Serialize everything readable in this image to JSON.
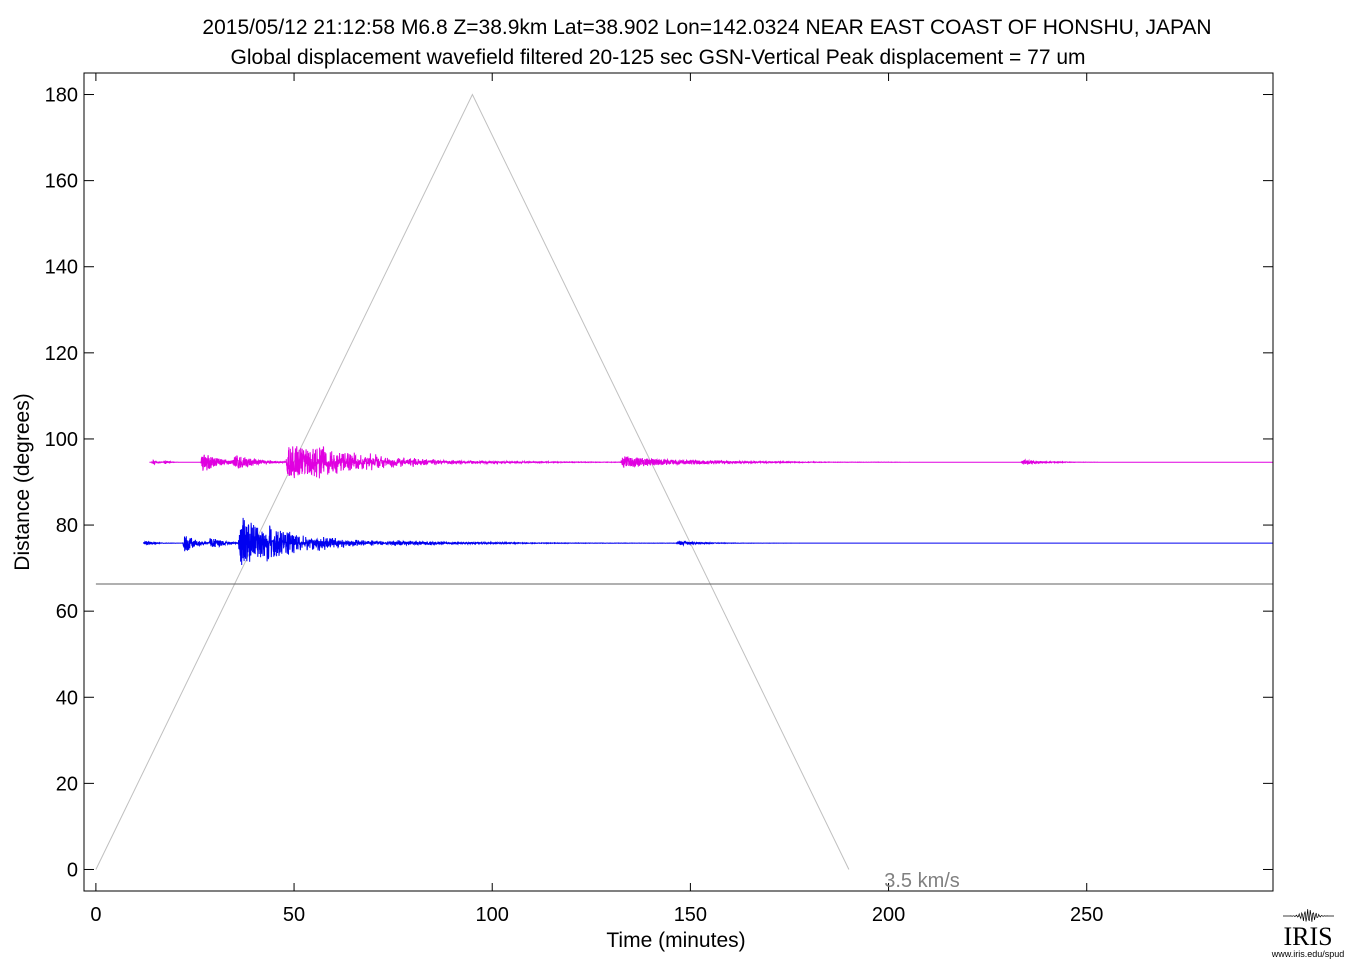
{
  "chart_data": {
    "type": "line",
    "title": "2015/05/12  21:12:58  M6.8  Z=38.9km  Lat=38.902 Lon=142.0324  NEAR EAST COAST OF HONSHU, JAPAN",
    "subtitle": "Global displacement wavefield    filtered 20-125 sec    GSN-Vertical    Peak displacement =  77 um",
    "xlabel": "Time (minutes)",
    "ylabel": "Distance (degrees)",
    "xlim": [
      -3,
      297
    ],
    "ylim": [
      -5,
      185
    ],
    "xticks": [
      0,
      50,
      100,
      150,
      200,
      250
    ],
    "yticks": [
      0,
      20,
      40,
      60,
      80,
      100,
      120,
      140,
      160,
      180
    ],
    "grid": false,
    "reference_line": {
      "label": "3.5 km/s",
      "x": [
        0,
        95,
        190
      ],
      "y": [
        0,
        180,
        0
      ],
      "color": "#c0c0c0"
    },
    "series": [
      {
        "distance": 94.6,
        "color": "#e000e0",
        "start": 13.5,
        "end": 297,
        "arrivals": [
          {
            "t": 14.5,
            "amp": 0.6,
            "dur": 1
          },
          {
            "t": 17.5,
            "amp": 0.5,
            "dur": 1
          },
          {
            "t": 27,
            "amp": 2.5,
            "dur": 4
          },
          {
            "t": 35,
            "amp": 2,
            "dur": 5
          },
          {
            "t": 48.5,
            "amp": 4.5,
            "dur": 14
          },
          {
            "t": 55,
            "amp": 2,
            "dur": 14
          },
          {
            "t": 68,
            "amp": 0.9,
            "dur": 20
          },
          {
            "t": 133,
            "amp": 1.5,
            "dur": 14
          },
          {
            "t": 150,
            "amp": 0.4,
            "dur": 15
          },
          {
            "t": 234,
            "amp": 0.6,
            "dur": 5
          }
        ]
      },
      {
        "distance": 75.8,
        "color": "#0000f0",
        "start": 12,
        "end": 297,
        "arrivals": [
          {
            "t": 12.5,
            "amp": 0.6,
            "dur": 2
          },
          {
            "t": 22.5,
            "amp": 2.5,
            "dur": 2.5
          },
          {
            "t": 29,
            "amp": 1.5,
            "dur": 3
          },
          {
            "t": 36.5,
            "amp": 7,
            "dur": 8
          },
          {
            "t": 43,
            "amp": 2.5,
            "dur": 12
          },
          {
            "t": 55,
            "amp": 1,
            "dur": 15
          },
          {
            "t": 75,
            "amp": 0.5,
            "dur": 20
          },
          {
            "t": 147,
            "amp": 0.6,
            "dur": 5
          }
        ]
      },
      {
        "distance": 66.3,
        "color": "#606060",
        "start": 0,
        "end": 297,
        "arrivals": []
      }
    ]
  },
  "logo": {
    "text": "IRIS",
    "url": "www.iris.edu/spud"
  }
}
